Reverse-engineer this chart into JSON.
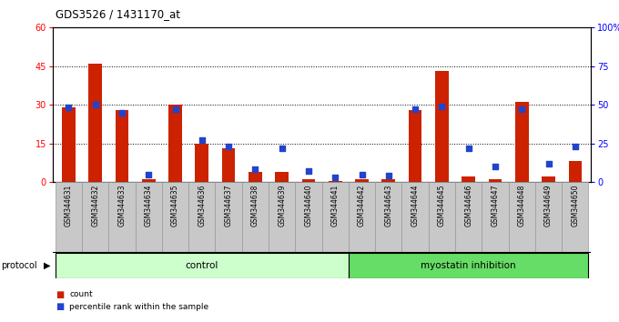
{
  "title": "GDS3526 / 1431170_at",
  "samples": [
    "GSM344631",
    "GSM344632",
    "GSM344633",
    "GSM344634",
    "GSM344635",
    "GSM344636",
    "GSM344637",
    "GSM344638",
    "GSM344639",
    "GSM344640",
    "GSM344641",
    "GSM344642",
    "GSM344643",
    "GSM344644",
    "GSM344645",
    "GSM344646",
    "GSM344647",
    "GSM344648",
    "GSM344649",
    "GSM344650"
  ],
  "count": [
    29,
    46,
    28,
    1,
    30,
    15,
    13,
    4,
    4,
    1,
    0.5,
    1,
    1,
    28,
    43,
    2,
    1,
    31,
    2,
    8
  ],
  "percentile": [
    48,
    50,
    45,
    5,
    47,
    27,
    23,
    8,
    22,
    7,
    3,
    5,
    4,
    47,
    49,
    22,
    10,
    47,
    12,
    23
  ],
  "bar_color": "#cc2200",
  "dot_color": "#2244cc",
  "plot_bg": "#ffffff",
  "fig_bg": "#ffffff",
  "left_ylim": [
    0,
    60
  ],
  "right_ylim": [
    0,
    100
  ],
  "left_yticks": [
    0,
    15,
    30,
    45,
    60
  ],
  "right_yticks": [
    0,
    25,
    50,
    75,
    100
  ],
  "right_yticklabels": [
    "0",
    "25",
    "50",
    "75",
    "100%"
  ],
  "control_n": 11,
  "control_color": "#ccffcc",
  "myostatin_color": "#66dd66",
  "label_bg": "#c8c8c8",
  "bar_width": 0.5
}
